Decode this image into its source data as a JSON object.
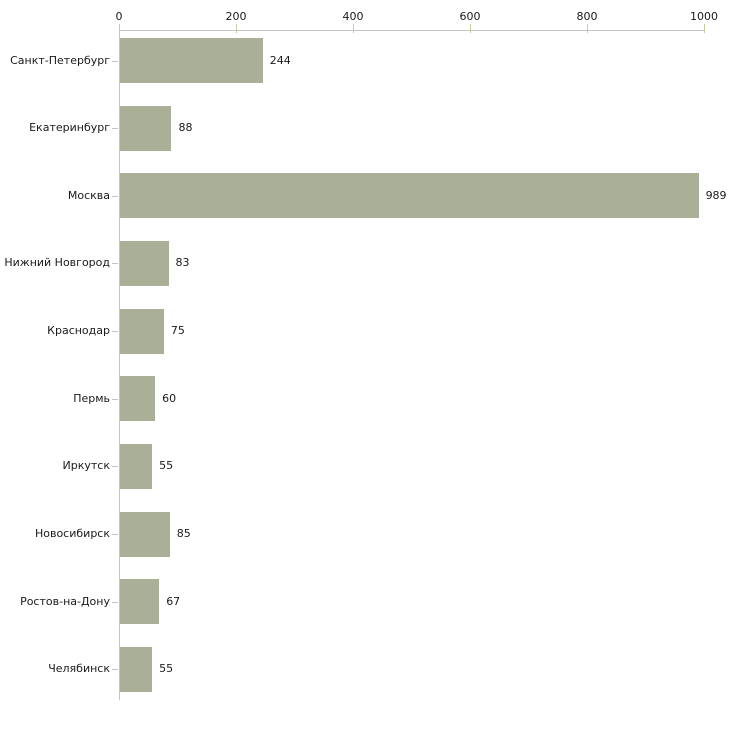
{
  "chart_data": {
    "type": "bar",
    "orientation": "horizontal",
    "title": "",
    "xlabel": "",
    "ylabel": "",
    "categories": [
      "Санкт-Петербург",
      "Екатеринбург",
      "Москва",
      "Нижний Новгород",
      "Краснодар",
      "Пермь",
      "Иркутск",
      "Новосибирск",
      "Ростов-на-Дону",
      "Челябинск"
    ],
    "values": [
      244,
      88,
      989,
      83,
      75,
      60,
      55,
      85,
      67,
      55
    ],
    "value_labels": [
      "244",
      "88",
      "989",
      "83",
      "75",
      "60",
      "55",
      "85",
      "67",
      "55"
    ],
    "x_ticks": [
      "0",
      "200",
      "400",
      "600",
      "800",
      "1000"
    ],
    "x_tick_values": [
      0,
      200,
      400,
      600,
      800,
      1000
    ],
    "xlim": [
      0,
      1000
    ],
    "grid": false,
    "legend": false,
    "axis_position": "top",
    "colors": {
      "bar_fill": "#aab098",
      "axis_line": "#c3c3c3",
      "axis_tick": "#c9c9a2",
      "text": "#1a1a1a"
    }
  }
}
